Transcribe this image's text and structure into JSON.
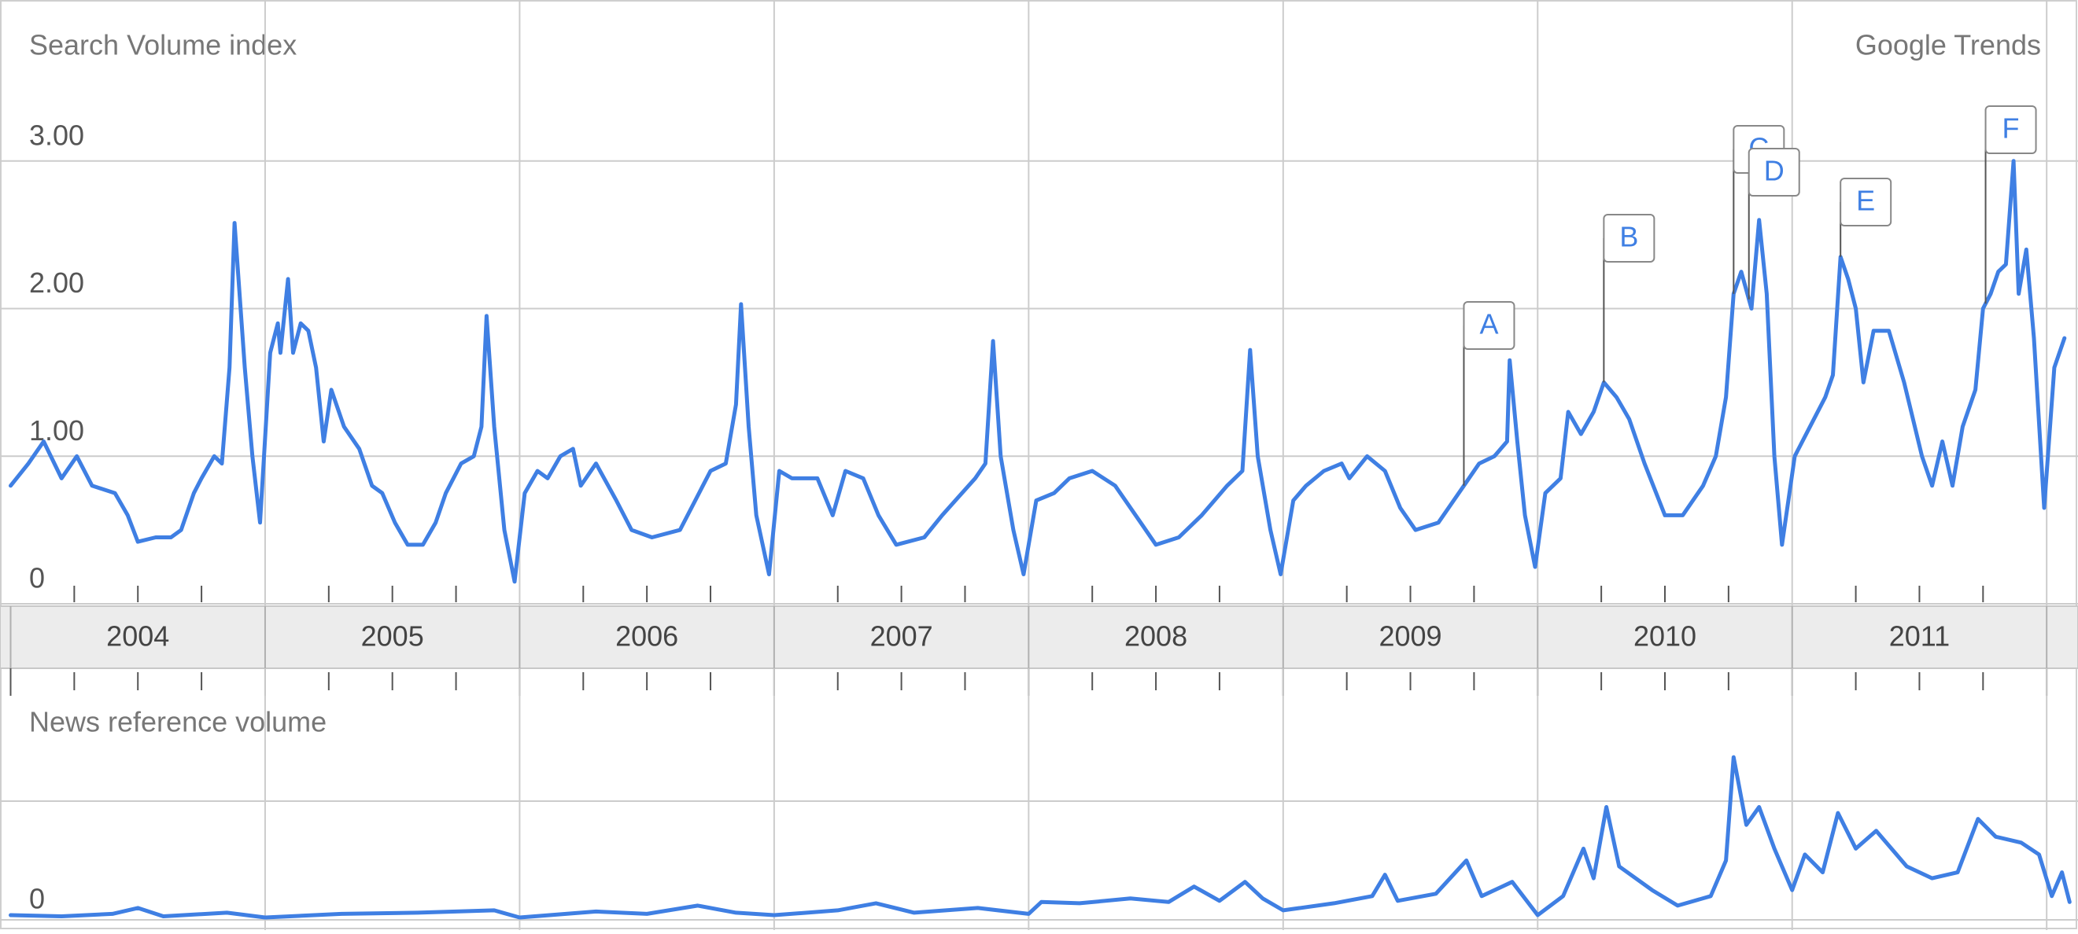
{
  "brand": "Google Trends",
  "chart_data": [
    {
      "type": "line",
      "title": "Search Volume index",
      "xlim": [
        2004,
        2012.12
      ],
      "xticks": [
        {
          "value": 2004,
          "label": "2004"
        },
        {
          "value": 2005,
          "label": "2005"
        },
        {
          "value": 2006,
          "label": "2006"
        },
        {
          "value": 2007,
          "label": "2007"
        },
        {
          "value": 2008,
          "label": "2008"
        },
        {
          "value": 2009,
          "label": "2009"
        },
        {
          "value": 2010,
          "label": "2010"
        },
        {
          "value": 2011,
          "label": "2011"
        },
        {
          "value": 2012,
          "label": null
        }
      ],
      "ylim": [
        0,
        4
      ],
      "yticks": [
        0,
        {
          "value": 1,
          "label": "1.00"
        },
        {
          "value": 2,
          "label": "2.00"
        },
        {
          "value": 3,
          "label": "3.00"
        }
      ],
      "grid": true,
      "x": [
        2004.0,
        2004.07,
        2004.13,
        2004.2,
        2004.26,
        2004.32,
        2004.41,
        2004.46,
        2004.5,
        2004.57,
        2004.63,
        2004.67,
        2004.72,
        2004.75,
        2004.8,
        2004.83,
        2004.86,
        2004.88,
        2004.92,
        2004.95,
        2004.98,
        2005.02,
        2005.05,
        2005.06,
        2005.09,
        2005.11,
        2005.14,
        2005.17,
        2005.2,
        2005.23,
        2005.26,
        2005.31,
        2005.37,
        2005.42,
        2005.46,
        2005.51,
        2005.56,
        2005.62,
        2005.67,
        2005.71,
        2005.77,
        2005.82,
        2005.85,
        2005.87,
        2005.9,
        2005.94,
        2005.98,
        2006.02,
        2006.07,
        2006.11,
        2006.16,
        2006.21,
        2006.24,
        2006.3,
        2006.38,
        2006.44,
        2006.52,
        2006.63,
        2006.69,
        2006.75,
        2006.81,
        2006.85,
        2006.87,
        2006.9,
        2006.93,
        2006.98,
        2007.02,
        2007.07,
        2007.17,
        2007.23,
        2007.28,
        2007.35,
        2007.41,
        2007.48,
        2007.59,
        2007.66,
        2007.79,
        2007.83,
        2007.86,
        2007.89,
        2007.94,
        2007.98,
        2008.03,
        2008.1,
        2008.16,
        2008.25,
        2008.34,
        2008.44,
        2008.5,
        2008.59,
        2008.68,
        2008.78,
        2008.84,
        2008.87,
        2008.9,
        2008.95,
        2008.99,
        2009.04,
        2009.09,
        2009.16,
        2009.23,
        2009.26,
        2009.33,
        2009.4,
        2009.46,
        2009.52,
        2009.61,
        2009.71,
        2009.77,
        2009.83,
        2009.88,
        2009.89,
        2009.92,
        2009.95,
        2009.99,
        2010.03,
        2010.09,
        2010.12,
        2010.17,
        2010.22,
        2010.26,
        2010.31,
        2010.36,
        2010.42,
        2010.5,
        2010.57,
        2010.65,
        2010.7,
        2010.74,
        2010.77,
        2010.8,
        2010.84,
        2010.87,
        2010.9,
        2010.93,
        2010.96,
        2011.01,
        2011.07,
        2011.13,
        2011.16,
        2011.19,
        2011.22,
        2011.25,
        2011.28,
        2011.32,
        2011.38,
        2011.44,
        2011.51,
        2011.55,
        2011.59,
        2011.63,
        2011.67,
        2011.72,
        2011.75,
        2011.78,
        2011.81,
        2011.84,
        2011.87,
        2011.89,
        2011.92,
        2011.95,
        2011.99,
        2012.03,
        2012.07
      ],
      "series": [
        {
          "color": "#3f7fe3",
          "values": [
            0.8,
            0.95,
            1.1,
            0.85,
            1.0,
            0.8,
            0.75,
            0.6,
            0.42,
            0.45,
            0.45,
            0.5,
            0.75,
            0.85,
            1.0,
            0.95,
            1.6,
            2.58,
            1.6,
            1.0,
            0.55,
            1.7,
            1.9,
            1.7,
            2.2,
            1.7,
            1.9,
            1.85,
            1.6,
            1.1,
            1.45,
            1.2,
            1.05,
            0.8,
            0.75,
            0.55,
            0.4,
            0.4,
            0.55,
            0.75,
            0.95,
            1.0,
            1.2,
            1.95,
            1.2,
            0.5,
            0.15,
            0.75,
            0.9,
            0.85,
            1.0,
            1.05,
            0.8,
            0.95,
            0.7,
            0.5,
            0.45,
            0.5,
            0.7,
            0.9,
            0.95,
            1.35,
            2.03,
            1.2,
            0.6,
            0.2,
            0.9,
            0.85,
            0.85,
            0.6,
            0.9,
            0.85,
            0.6,
            0.4,
            0.45,
            0.6,
            0.85,
            0.95,
            1.78,
            1.0,
            0.5,
            0.2,
            0.7,
            0.75,
            0.85,
            0.9,
            0.8,
            0.55,
            0.4,
            0.45,
            0.6,
            0.8,
            0.9,
            1.72,
            1.0,
            0.5,
            0.2,
            0.7,
            0.8,
            0.9,
            0.95,
            0.85,
            1.0,
            0.9,
            0.65,
            0.5,
            0.55,
            0.8,
            0.95,
            1.0,
            1.1,
            1.65,
            1.1,
            0.6,
            0.25,
            0.75,
            0.85,
            1.3,
            1.15,
            1.3,
            1.5,
            1.4,
            1.25,
            0.95,
            0.6,
            0.6,
            0.8,
            1.0,
            1.4,
            2.1,
            2.25,
            2.0,
            2.6,
            2.1,
            1.0,
            0.4,
            1.0,
            1.2,
            1.4,
            1.55,
            2.35,
            2.2,
            2.0,
            1.5,
            1.85,
            1.85,
            1.5,
            1.0,
            0.8,
            1.1,
            0.8,
            1.2,
            1.45,
            2.0,
            2.1,
            2.25,
            2.3,
            3.0,
            2.1,
            2.4,
            1.8,
            0.65,
            1.6,
            1.8
          ]
        }
      ],
      "annotations": [
        {
          "label": "A",
          "x": 2009.71
        },
        {
          "label": "B",
          "x": 2010.26
        },
        {
          "label": "C",
          "x": 2010.77
        },
        {
          "label": "D",
          "x": 2010.83
        },
        {
          "label": "E",
          "x": 2011.19
        },
        {
          "label": "F",
          "x": 2011.76
        }
      ]
    },
    {
      "type": "line",
      "title": "News reference volume",
      "xlim": [
        2004,
        2012.12
      ],
      "ylim": [
        0,
        1.45
      ],
      "yticks": [
        0,
        {
          "value": 1,
          "label": null
        }
      ],
      "grid": true,
      "x": [
        2004.0,
        2004.2,
        2004.4,
        2004.5,
        2004.6,
        2004.85,
        2005.0,
        2005.3,
        2005.6,
        2005.9,
        2006.0,
        2006.3,
        2006.5,
        2006.7,
        2006.85,
        2007.0,
        2007.25,
        2007.4,
        2007.55,
        2007.8,
        2008.0,
        2008.05,
        2008.2,
        2008.4,
        2008.55,
        2008.65,
        2008.75,
        2008.85,
        2008.92,
        2009.0,
        2009.2,
        2009.35,
        2009.4,
        2009.45,
        2009.6,
        2009.72,
        2009.78,
        2009.9,
        2010.0,
        2010.1,
        2010.18,
        2010.22,
        2010.27,
        2010.32,
        2010.45,
        2010.55,
        2010.68,
        2010.74,
        2010.77,
        2010.82,
        2010.87,
        2010.93,
        2011.0,
        2011.05,
        2011.12,
        2011.18,
        2011.25,
        2011.33,
        2011.45,
        2011.55,
        2011.65,
        2011.73,
        2011.8,
        2011.9,
        2011.97,
        2012.02,
        2012.06,
        2012.09
      ],
      "series": [
        {
          "color": "#3f7fe3",
          "values": [
            0.04,
            0.03,
            0.05,
            0.1,
            0.03,
            0.06,
            0.02,
            0.05,
            0.06,
            0.08,
            0.02,
            0.07,
            0.05,
            0.12,
            0.06,
            0.04,
            0.08,
            0.14,
            0.06,
            0.1,
            0.05,
            0.15,
            0.14,
            0.18,
            0.15,
            0.28,
            0.16,
            0.32,
            0.18,
            0.08,
            0.14,
            0.2,
            0.38,
            0.16,
            0.22,
            0.5,
            0.2,
            0.32,
            0.04,
            0.2,
            0.6,
            0.35,
            0.95,
            0.45,
            0.25,
            0.12,
            0.2,
            0.5,
            1.37,
            0.8,
            0.95,
            0.6,
            0.25,
            0.55,
            0.4,
            0.9,
            0.6,
            0.75,
            0.45,
            0.35,
            0.4,
            0.85,
            0.7,
            0.65,
            0.55,
            0.2,
            0.4,
            0.15
          ]
        }
      ]
    }
  ]
}
